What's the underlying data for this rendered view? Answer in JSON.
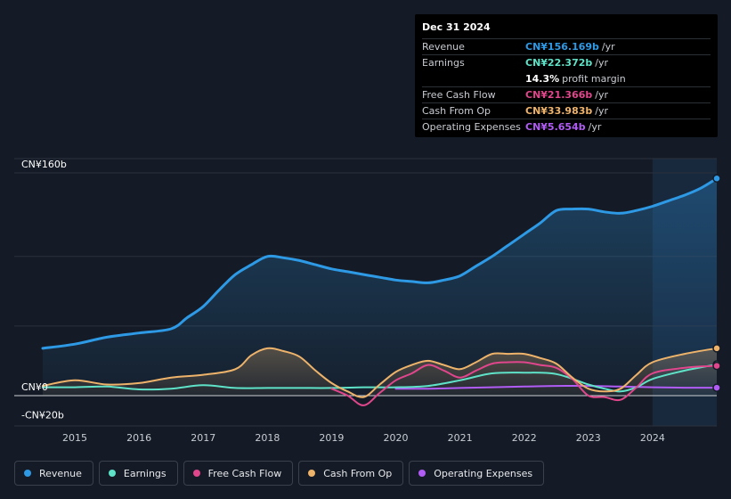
{
  "tooltip": {
    "date": "Dec 31 2024",
    "rows": [
      {
        "label": "Revenue",
        "value": "CN¥156.169b",
        "unit": "/yr",
        "color": "#2e9ae6"
      },
      {
        "label": "Earnings",
        "value": "CN¥22.372b",
        "unit": "/yr",
        "color": "#5fe3c8"
      },
      {
        "label": "",
        "value": "14.3%",
        "unit": "profit margin",
        "color": "#ffffff"
      },
      {
        "label": "Free Cash Flow",
        "value": "CN¥21.366b",
        "unit": "/yr",
        "color": "#e0468c"
      },
      {
        "label": "Cash From Op",
        "value": "CN¥33.983b",
        "unit": "/yr",
        "color": "#eeb36a"
      },
      {
        "label": "Operating Expenses",
        "value": "CN¥5.654b",
        "unit": "/yr",
        "color": "#b15cf5"
      }
    ]
  },
  "legend": [
    {
      "label": "Revenue",
      "color": "#2e9ae6"
    },
    {
      "label": "Earnings",
      "color": "#5fe3c8"
    },
    {
      "label": "Free Cash Flow",
      "color": "#e0468c"
    },
    {
      "label": "Cash From Op",
      "color": "#eeb36a"
    },
    {
      "label": "Operating Expenses",
      "color": "#b15cf5"
    }
  ],
  "chart_data": {
    "type": "area",
    "ylim": [
      -20,
      160
    ],
    "xlim": [
      2014.5,
      2025.0
    ],
    "y_tick_labels": [
      {
        "label": "CN¥160b",
        "value": 160
      },
      {
        "label": "CN¥0",
        "value": 0
      },
      {
        "label": "-CN¥20b",
        "value": -20
      }
    ],
    "x_ticks": [
      {
        "label": "2015",
        "value": 2015.0
      },
      {
        "label": "2016",
        "value": 2016.0
      },
      {
        "label": "2017",
        "value": 2017.0
      },
      {
        "label": "2018",
        "value": 2018.0
      },
      {
        "label": "2019",
        "value": 2019.0
      },
      {
        "label": "2020",
        "value": 2020.0
      },
      {
        "label": "2021",
        "value": 2021.0
      },
      {
        "label": "2022",
        "value": 2022.0
      },
      {
        "label": "2023",
        "value": 2023.0
      },
      {
        "label": "2024",
        "value": 2024.0
      }
    ],
    "highlight_start": 2024.0,
    "series": [
      {
        "name": "Revenue",
        "color": "#2e9ae6",
        "fill": true,
        "x": [
          2014.5,
          2015.0,
          2015.5,
          2016.0,
          2016.5,
          2016.75,
          2017.0,
          2017.25,
          2017.5,
          2017.75,
          2018.0,
          2018.25,
          2018.5,
          2018.75,
          2019.0,
          2019.25,
          2019.5,
          2019.75,
          2020.0,
          2020.25,
          2020.5,
          2020.75,
          2021.0,
          2021.25,
          2021.5,
          2021.75,
          2022.0,
          2022.25,
          2022.5,
          2022.75,
          2023.0,
          2023.25,
          2023.5,
          2023.75,
          2024.0,
          2024.25,
          2024.5,
          2024.75,
          2025.0
        ],
        "values": [
          34,
          37,
          42,
          45,
          48,
          56,
          64,
          76,
          87,
          94,
          100,
          99,
          97,
          94,
          91,
          89,
          87,
          85,
          83,
          82,
          81,
          83,
          86,
          93,
          100,
          108,
          116,
          124,
          133,
          134,
          134,
          132,
          131,
          133,
          136,
          140,
          144,
          149,
          156
        ]
      },
      {
        "name": "Earnings",
        "color": "#5fe3c8",
        "fill": false,
        "x": [
          2014.5,
          2015.0,
          2015.5,
          2016.0,
          2016.5,
          2017.0,
          2017.5,
          2018.0,
          2018.5,
          2019.0,
          2019.5,
          2020.0,
          2020.5,
          2021.0,
          2021.5,
          2022.0,
          2022.5,
          2023.0,
          2023.25,
          2023.5,
          2023.75,
          2024.0,
          2024.5,
          2025.0
        ],
        "values": [
          6,
          6,
          6.5,
          4.5,
          5,
          7.5,
          5.5,
          5.5,
          5.5,
          5.5,
          6,
          6,
          7,
          11,
          16,
          16.5,
          15.5,
          8,
          5,
          3,
          6,
          12,
          18,
          22.4
        ]
      },
      {
        "name": "Free Cash Flow",
        "color": "#e0468c",
        "fill": false,
        "x": [
          2019.0,
          2019.25,
          2019.5,
          2019.75,
          2020.0,
          2020.25,
          2020.5,
          2020.75,
          2021.0,
          2021.25,
          2021.5,
          2021.75,
          2022.0,
          2022.25,
          2022.5,
          2022.75,
          2023.0,
          2023.25,
          2023.5,
          2023.75,
          2024.0,
          2024.5,
          2025.0
        ],
        "values": [
          5,
          0,
          -7,
          2,
          11,
          16,
          22,
          18,
          13,
          18,
          23,
          24,
          24,
          22,
          20,
          12,
          0,
          -1,
          -3,
          6,
          16,
          20,
          21.4
        ]
      },
      {
        "name": "Cash From Op",
        "color": "#eeb36a",
        "fill": true,
        "x": [
          2014.5,
          2015.0,
          2015.5,
          2016.0,
          2016.5,
          2017.0,
          2017.5,
          2017.75,
          2018.0,
          2018.25,
          2018.5,
          2018.75,
          2019.0,
          2019.25,
          2019.5,
          2019.75,
          2020.0,
          2020.25,
          2020.5,
          2020.75,
          2021.0,
          2021.25,
          2021.5,
          2021.75,
          2022.0,
          2022.25,
          2022.5,
          2022.75,
          2023.0,
          2023.25,
          2023.5,
          2023.75,
          2024.0,
          2024.5,
          2025.0
        ],
        "values": [
          7,
          11,
          8,
          9,
          13,
          15,
          19,
          29,
          34,
          32,
          28,
          18,
          9,
          3,
          -1,
          8,
          17,
          22,
          25,
          22,
          19,
          24,
          30,
          30,
          30,
          27,
          23,
          13,
          5,
          3,
          5,
          15,
          24,
          30,
          34
        ]
      },
      {
        "name": "Operating Expenses",
        "color": "#b15cf5",
        "fill": false,
        "x": [
          2020.0,
          2020.5,
          2021.0,
          2021.5,
          2022.0,
          2022.5,
          2023.0,
          2023.5,
          2024.0,
          2024.5,
          2025.0
        ],
        "values": [
          5,
          5,
          5.5,
          6,
          6.5,
          7,
          7,
          6.5,
          6,
          5.7,
          5.7
        ]
      }
    ]
  }
}
